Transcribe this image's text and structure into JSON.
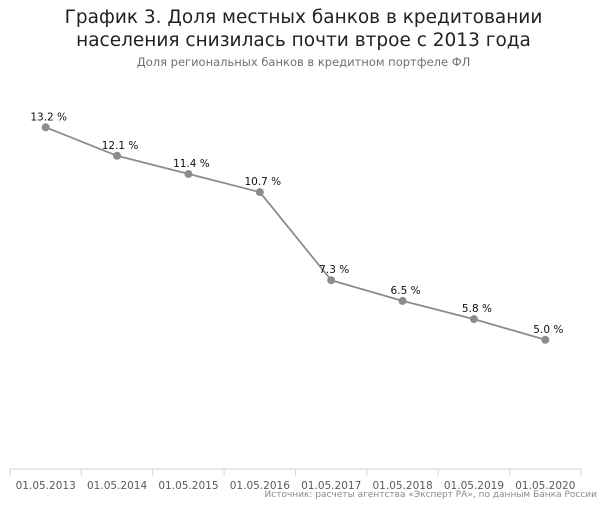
{
  "chart_data": {
    "type": "line",
    "title": "График 3. Доля местных банков в кредитовании\nнаселения снизилась почти втрое с 2013 года",
    "subtitle": "Доля региональных банков в кредитном портфеле ФЛ",
    "x": [
      "01.05.2013",
      "01.05.2014",
      "01.05.2015",
      "01.05.2016",
      "01.05.2017",
      "01.05.2018",
      "01.05.2019",
      "01.05.2020"
    ],
    "series": [
      {
        "values": [
          13.2,
          12.1,
          11.4,
          10.7,
          7.3,
          6.5,
          5.8,
          5.0
        ],
        "labels": [
          "13.2 %",
          "12.1 %",
          "11.4 %",
          "10.7 %",
          "7.3 %",
          "6.5 %",
          "5.8 %",
          "5.0 %"
        ]
      }
    ],
    "xlabel": "",
    "ylabel": "",
    "ylim": [
      0,
      14
    ],
    "grid": false,
    "line_color": "#8c8c8c",
    "axis_color": "#d0d6d0",
    "source": "Источник: расчеты агентства «Эксперт РА», по данным Банка России"
  }
}
